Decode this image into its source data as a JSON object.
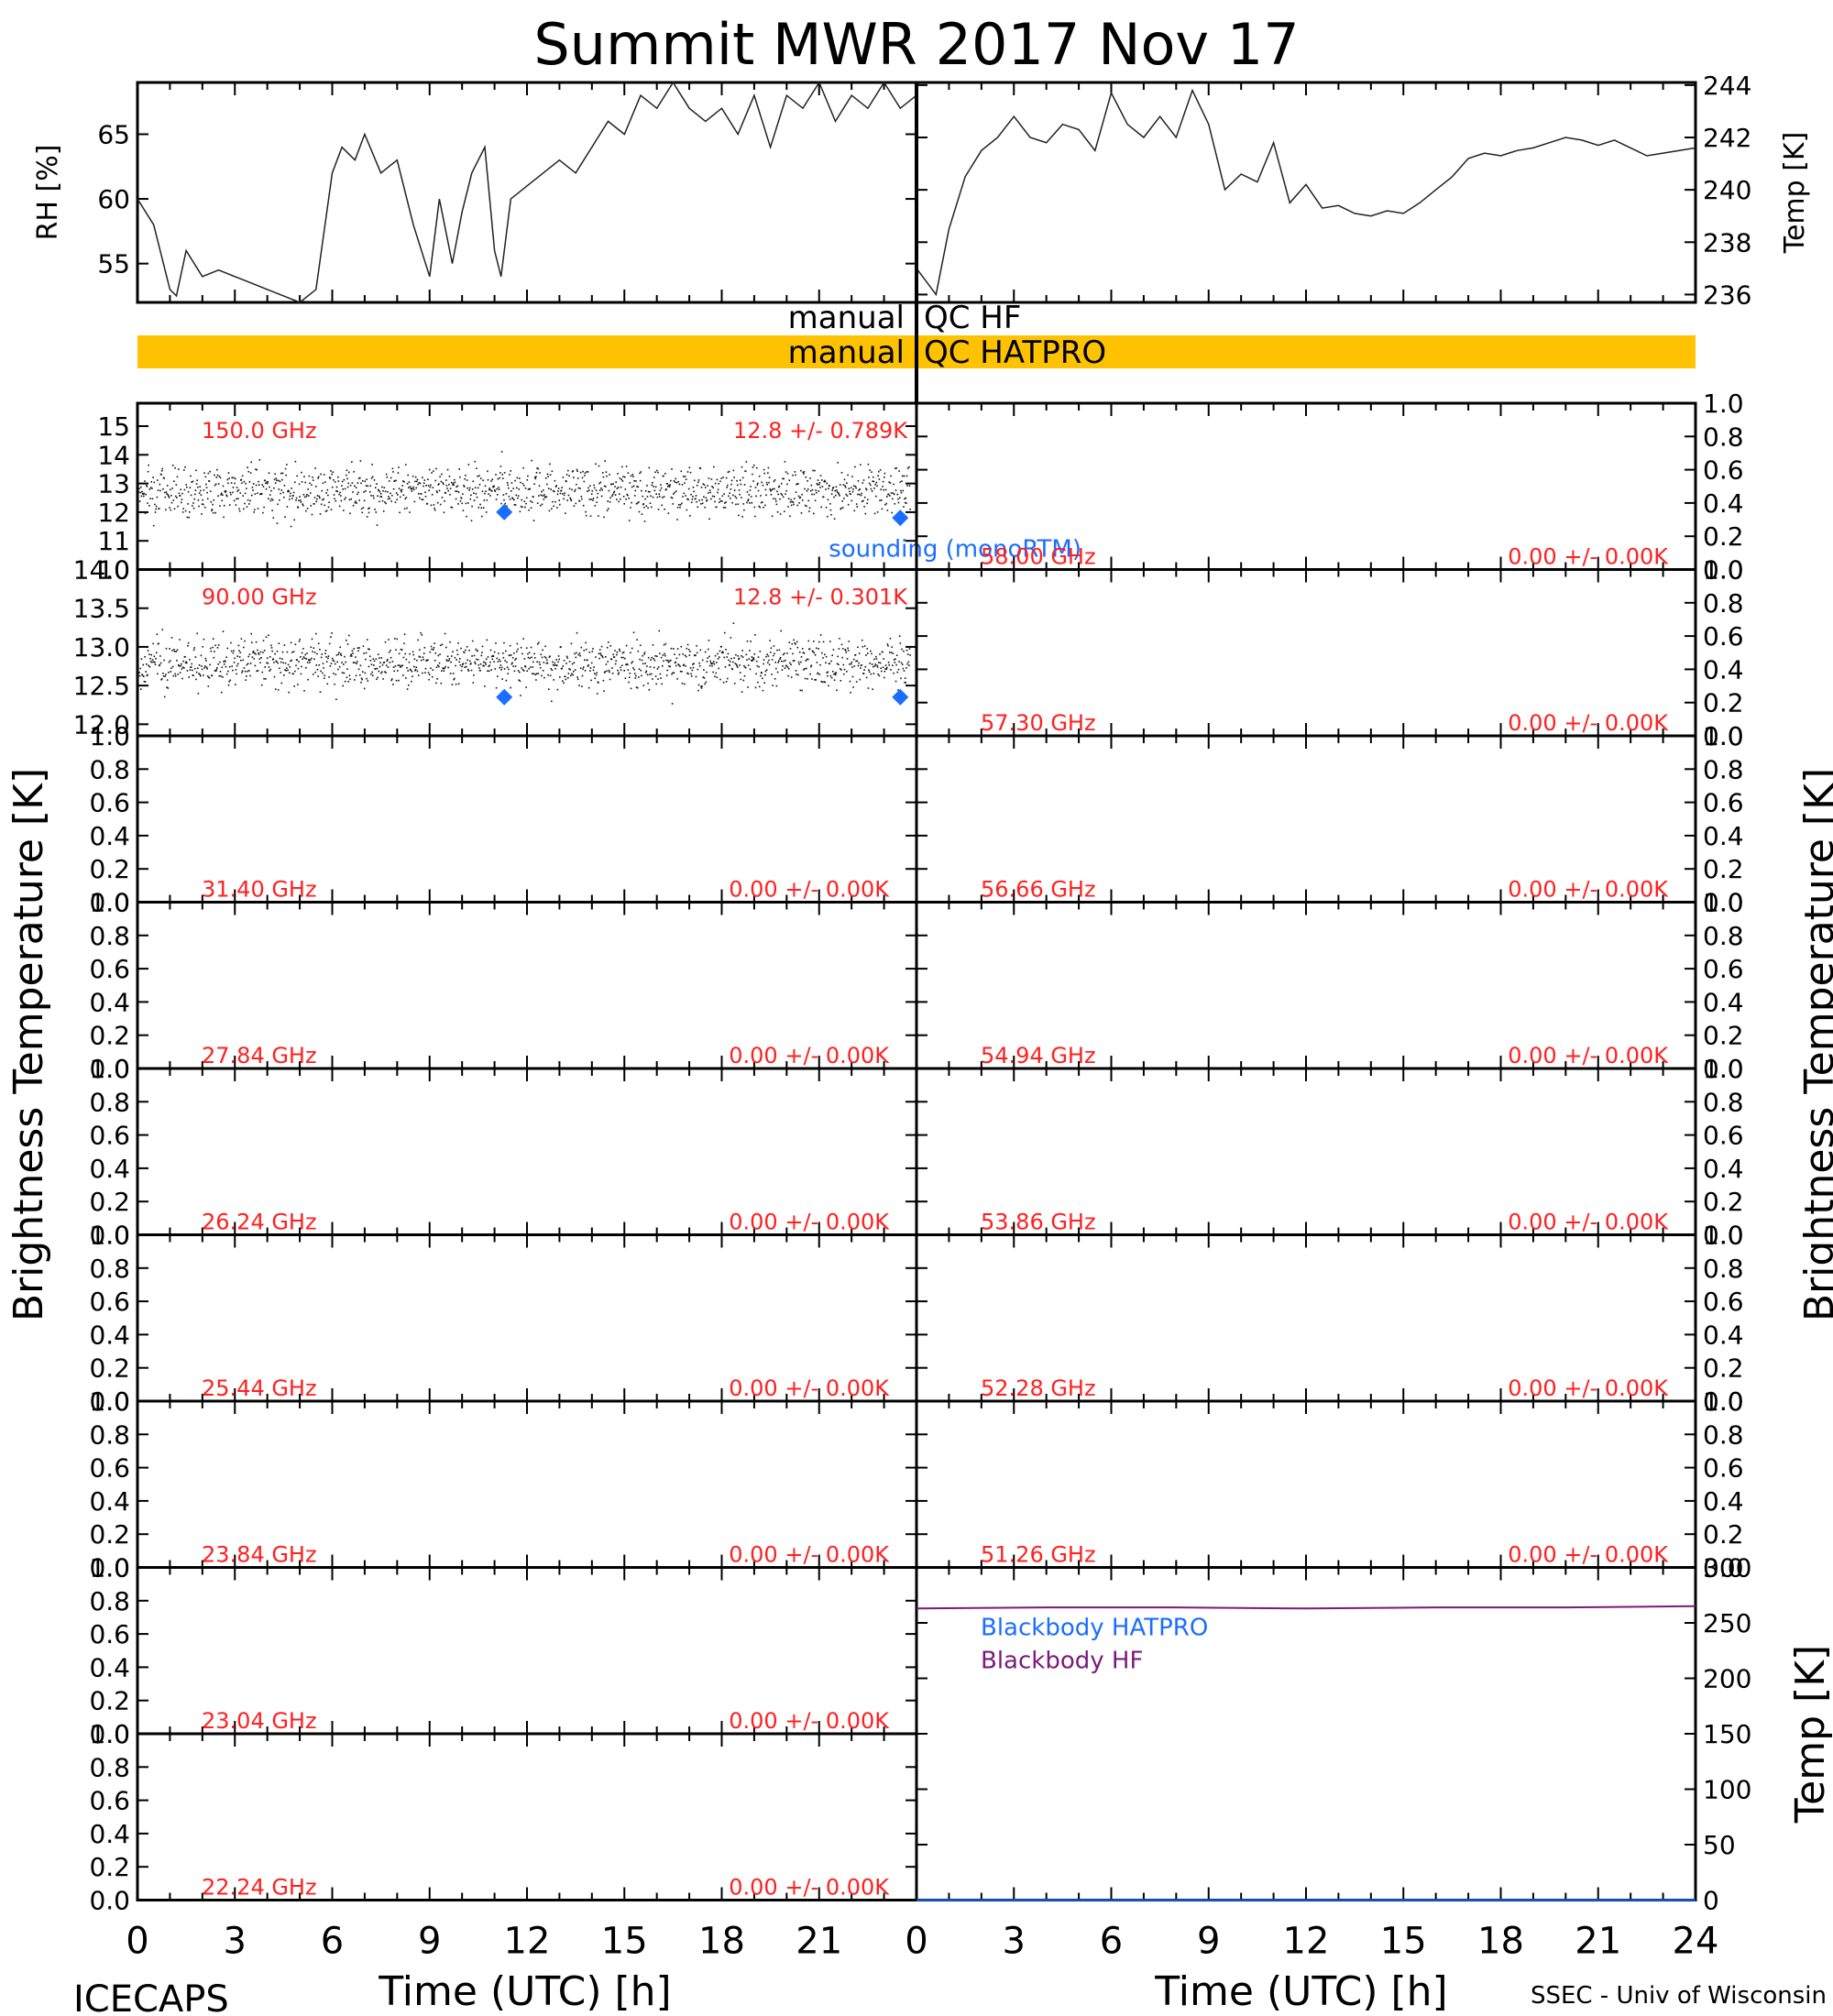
{
  "title": "Summit MWR 2017 Nov 17",
  "footer": {
    "left": "ICECAPS",
    "right": "SSEC - Univ of Wisconsin"
  },
  "colors": {
    "channel_label": "#ff2020",
    "sounding": "#1a6eff",
    "qc_bar": "#ffc200",
    "bb_hatpro": "#1a6eff",
    "bb_hf": "#7a1a7a"
  },
  "qc": {
    "row1_left": "manual",
    "row1_right": "QC HF",
    "row2_left": "manual",
    "row2_right": "QC HATPRO"
  },
  "x_axis": {
    "label": "Time (UTC) [h]",
    "ticks": [
      "0",
      "3",
      "6",
      "9",
      "12",
      "15",
      "18",
      "21",
      "24"
    ],
    "range": [
      0,
      24
    ]
  },
  "left_axis_label": "Brightness Temperature [K]",
  "right_axis_label": "Brightness Temperature [K]",
  "chart_data": [
    {
      "type": "line",
      "panel": "rh",
      "ylabel": "RH [%]",
      "ylim": [
        52,
        69
      ],
      "yticks": [
        "55",
        "60",
        "65"
      ],
      "x": [
        0,
        0.5,
        1,
        1.2,
        1.5,
        2,
        2.5,
        3,
        3.5,
        4,
        4.5,
        5,
        5.5,
        6,
        6.3,
        6.7,
        7,
        7.5,
        8,
        8.5,
        9,
        9.3,
        9.7,
        10,
        10.3,
        10.7,
        11,
        11.2,
        11.5,
        12,
        12.5,
        13,
        13.5,
        14,
        14.5,
        15,
        15.5,
        16,
        16.5,
        17,
        17.5,
        18,
        18.5,
        19,
        19.5,
        20,
        20.5,
        21,
        21.5,
        22,
        22.5,
        23,
        23.5,
        24
      ],
      "y": [
        60,
        58,
        53,
        52.5,
        56,
        54,
        54.5,
        54,
        53.5,
        53,
        52.5,
        52,
        53,
        62,
        64,
        63,
        65,
        62,
        63,
        58,
        54,
        60,
        55,
        59,
        62,
        64,
        56,
        54,
        60,
        61,
        62,
        63,
        62,
        64,
        66,
        65,
        68,
        67,
        69,
        67,
        66,
        67,
        65,
        68,
        64,
        68,
        67,
        69,
        66,
        68,
        67,
        69,
        67,
        68
      ]
    },
    {
      "type": "line",
      "panel": "temp",
      "ylabel": "Temp [K]",
      "ylim": [
        235.7,
        244.1
      ],
      "yticks": [
        "236",
        "238",
        "240",
        "242",
        "244"
      ],
      "x": [
        0,
        0.3,
        0.6,
        1,
        1.5,
        2,
        2.5,
        3,
        3.5,
        4,
        4.5,
        5,
        5.5,
        6,
        6.5,
        7,
        7.5,
        8,
        8.5,
        9,
        9.5,
        10,
        10.5,
        11,
        11.5,
        12,
        12.5,
        13,
        13.5,
        14,
        14.5,
        15,
        15.5,
        16,
        16.5,
        17,
        17.5,
        18,
        18.5,
        19,
        19.5,
        20,
        20.5,
        21,
        21.5,
        22,
        22.5,
        23,
        23.5,
        24
      ],
      "y": [
        237,
        236.5,
        236,
        238.5,
        240.5,
        241.5,
        242,
        242.8,
        242,
        241.8,
        242.5,
        242.3,
        241.5,
        243.7,
        242.5,
        242,
        242.8,
        242,
        243.8,
        242.5,
        240,
        240.6,
        240.3,
        241.8,
        239.5,
        240.2,
        239.3,
        239.4,
        239.1,
        239,
        239.2,
        239.1,
        239.5,
        240,
        240.5,
        241.2,
        241.4,
        241.3,
        241.5,
        241.6,
        241.8,
        242,
        241.9,
        241.7,
        241.9,
        241.6,
        241.3,
        241.4,
        241.5,
        241.6
      ]
    },
    {
      "type": "scatter",
      "panel": "ch-150",
      "label": "150.0 GHz",
      "stat": "12.8 +/- 0.789K",
      "ylim": [
        10,
        15.8
      ],
      "yticks": [
        "10",
        "11",
        "12",
        "13",
        "14",
        "15"
      ],
      "mean": 12.8,
      "std": 0.789,
      "sounding_x": [
        11.3,
        23.5
      ],
      "sounding_y": [
        12.0,
        11.8
      ],
      "annotation": "sounding (monoRTM)"
    },
    {
      "type": "scatter",
      "panel": "ch-90",
      "label": "90.00 GHz",
      "stat": "12.8 +/- 0.301K",
      "ylim": [
        11.85,
        14.0
      ],
      "yticks": [
        "12.0",
        "12.5",
        "13.0",
        "13.5",
        "14.0"
      ],
      "mean": 12.8,
      "std": 0.301,
      "sounding_x": [
        11.3,
        23.5
      ],
      "sounding_y": [
        12.35,
        12.35
      ]
    },
    {
      "type": "scatter",
      "panel": "ch-58.00",
      "label": "58.00 GHz",
      "stat": "0.00 +/- 0.00K",
      "ylim": [
        0,
        1
      ]
    },
    {
      "type": "scatter",
      "panel": "ch-57.30",
      "label": "57.30 GHz",
      "stat": "0.00 +/- 0.00K",
      "ylim": [
        0,
        1
      ]
    },
    {
      "type": "scatter",
      "panel": "ch-31.40",
      "label": "31.40 GHz",
      "stat": "0.00 +/- 0.00K",
      "ylim": [
        0,
        1
      ]
    },
    {
      "type": "scatter",
      "panel": "ch-56.66",
      "label": "56.66 GHz",
      "stat": "0.00 +/- 0.00K",
      "ylim": [
        0,
        1
      ]
    },
    {
      "type": "scatter",
      "panel": "ch-27.84",
      "label": "27.84 GHz",
      "stat": "0.00 +/- 0.00K",
      "ylim": [
        0,
        1
      ]
    },
    {
      "type": "scatter",
      "panel": "ch-54.94",
      "label": "54.94 GHz",
      "stat": "0.00 +/- 0.00K",
      "ylim": [
        0,
        1
      ]
    },
    {
      "type": "scatter",
      "panel": "ch-26.24",
      "label": "26.24 GHz",
      "stat": "0.00 +/- 0.00K",
      "ylim": [
        0,
        1
      ]
    },
    {
      "type": "scatter",
      "panel": "ch-53.86",
      "label": "53.86 GHz",
      "stat": "0.00 +/- 0.00K",
      "ylim": [
        0,
        1
      ]
    },
    {
      "type": "scatter",
      "panel": "ch-25.44",
      "label": "25.44 GHz",
      "stat": "0.00 +/- 0.00K",
      "ylim": [
        0,
        1
      ]
    },
    {
      "type": "scatter",
      "panel": "ch-52.28",
      "label": "52.28 GHz",
      "stat": "0.00 +/- 0.00K",
      "ylim": [
        0,
        1
      ]
    },
    {
      "type": "scatter",
      "panel": "ch-23.84",
      "label": "23.84 GHz",
      "stat": "0.00 +/- 0.00K",
      "ylim": [
        0,
        1
      ]
    },
    {
      "type": "scatter",
      "panel": "ch-51.26",
      "label": "51.26 GHz",
      "stat": "0.00 +/- 0.00K",
      "ylim": [
        0,
        1
      ]
    },
    {
      "type": "scatter",
      "panel": "ch-23.04",
      "label": "23.04 GHz",
      "stat": "0.00 +/- 0.00K",
      "ylim": [
        0,
        1
      ]
    },
    {
      "type": "scatter",
      "panel": "ch-22.24",
      "label": "22.24 GHz",
      "stat": "0.00 +/- 0.00K",
      "ylim": [
        0,
        1
      ]
    },
    {
      "type": "line",
      "panel": "blackbody",
      "ylabel": "Temp [K]",
      "ylim": [
        0,
        300
      ],
      "yticks": [
        "0",
        "50",
        "100",
        "150",
        "200",
        "250",
        "300"
      ],
      "series": [
        {
          "name": "Blackbody HATPRO",
          "x": [
            0,
            24
          ],
          "y": [
            0,
            0
          ]
        },
        {
          "name": "Blackbody HF",
          "x": [
            0,
            4,
            8,
            12,
            16,
            20,
            24
          ],
          "y": [
            263,
            264,
            264,
            263,
            264,
            264,
            265
          ]
        }
      ]
    }
  ],
  "zero_ticks": [
    "0.0",
    "0.2",
    "0.4",
    "0.6",
    "0.8",
    "1.0"
  ]
}
